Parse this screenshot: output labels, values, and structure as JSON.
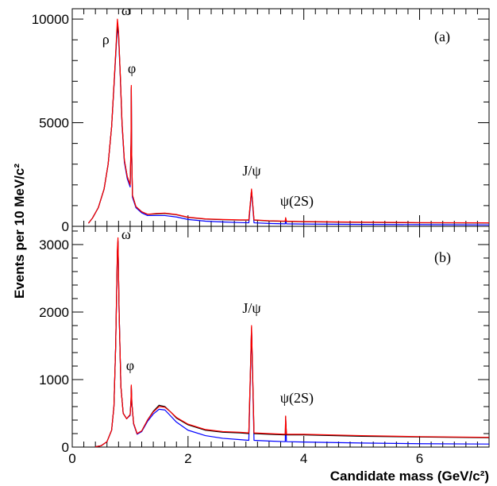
{
  "chart_data": [
    {
      "type": "line",
      "panel_label": "(a)",
      "ylabel": "Events per 10 MeV/c²",
      "xlabel": "",
      "xlim": [
        0,
        7.2
      ],
      "ylim": [
        0,
        10500
      ],
      "yticks": [
        0,
        5000,
        10000
      ],
      "ytick_labels": [
        "0",
        "5000",
        "10000"
      ],
      "grid": false,
      "x_unit_note": "GeV/c²",
      "series": [
        {
          "color": "#000000",
          "points": [
            [
              0.28,
              150
            ],
            [
              0.35,
              400
            ],
            [
              0.45,
              900
            ],
            [
              0.55,
              1800
            ],
            [
              0.62,
              3000
            ],
            [
              0.68,
              4800
            ],
            [
              0.72,
              6800
            ],
            [
              0.76,
              8800
            ],
            [
              0.78,
              9700
            ],
            [
              0.8,
              9300
            ],
            [
              0.83,
              7300
            ],
            [
              0.86,
              5000
            ],
            [
              0.9,
              3200
            ],
            [
              0.95,
              2400
            ],
            [
              1.0,
              2000
            ],
            [
              1.015,
              4000
            ],
            [
              1.02,
              6700
            ],
            [
              1.025,
              3800
            ],
            [
              1.04,
              1500
            ],
            [
              1.1,
              950
            ],
            [
              1.2,
              700
            ],
            [
              1.3,
              580
            ],
            [
              1.45,
              600
            ],
            [
              1.6,
              620
            ],
            [
              1.8,
              560
            ],
            [
              2.0,
              430
            ],
            [
              2.3,
              350
            ],
            [
              2.6,
              320
            ],
            [
              2.9,
              300
            ],
            [
              3.05,
              300
            ],
            [
              3.097,
              1750
            ],
            [
              3.14,
              300
            ],
            [
              3.4,
              260
            ],
            [
              3.68,
              240
            ],
            [
              3.686,
              400
            ],
            [
              3.7,
              240
            ],
            [
              4.0,
              220
            ],
            [
              5.0,
              190
            ],
            [
              6.0,
              170
            ],
            [
              7.2,
              160
            ]
          ]
        },
        {
          "color": "#ff0000",
          "points": [
            [
              0.28,
              150
            ],
            [
              0.35,
              400
            ],
            [
              0.45,
              900
            ],
            [
              0.55,
              1800
            ],
            [
              0.62,
              3000
            ],
            [
              0.68,
              4800
            ],
            [
              0.72,
              6800
            ],
            [
              0.76,
              8900
            ],
            [
              0.78,
              10000
            ],
            [
              0.8,
              9400
            ],
            [
              0.83,
              7300
            ],
            [
              0.86,
              5000
            ],
            [
              0.9,
              3200
            ],
            [
              0.95,
              2400
            ],
            [
              1.0,
              2000
            ],
            [
              1.015,
              4000
            ],
            [
              1.02,
              6800
            ],
            [
              1.025,
              3800
            ],
            [
              1.04,
              1500
            ],
            [
              1.1,
              950
            ],
            [
              1.2,
              700
            ],
            [
              1.3,
              580
            ],
            [
              1.45,
              620
            ],
            [
              1.6,
              640
            ],
            [
              1.8,
              570
            ],
            [
              2.0,
              440
            ],
            [
              2.3,
              360
            ],
            [
              2.6,
              330
            ],
            [
              2.9,
              310
            ],
            [
              3.05,
              310
            ],
            [
              3.097,
              1800
            ],
            [
              3.14,
              310
            ],
            [
              3.4,
              270
            ],
            [
              3.68,
              250
            ],
            [
              3.686,
              420
            ],
            [
              3.7,
              250
            ],
            [
              4.0,
              230
            ],
            [
              5.0,
              200
            ],
            [
              6.0,
              180
            ],
            [
              7.2,
              170
            ]
          ]
        },
        {
          "color": "#0000ff",
          "points": [
            [
              0.28,
              150
            ],
            [
              0.35,
              400
            ],
            [
              0.45,
              900
            ],
            [
              0.55,
              1800
            ],
            [
              0.62,
              3000
            ],
            [
              0.68,
              4800
            ],
            [
              0.72,
              6700
            ],
            [
              0.76,
              8700
            ],
            [
              0.78,
              9600
            ],
            [
              0.8,
              9200
            ],
            [
              0.83,
              7200
            ],
            [
              0.86,
              4900
            ],
            [
              0.9,
              3100
            ],
            [
              0.95,
              2300
            ],
            [
              1.0,
              1900
            ],
            [
              1.015,
              3900
            ],
            [
              1.02,
              6600
            ],
            [
              1.025,
              3700
            ],
            [
              1.04,
              1400
            ],
            [
              1.1,
              900
            ],
            [
              1.2,
              650
            ],
            [
              1.3,
              520
            ],
            [
              1.45,
              520
            ],
            [
              1.6,
              520
            ],
            [
              1.8,
              450
            ],
            [
              2.0,
              330
            ],
            [
              2.3,
              250
            ],
            [
              2.6,
              210
            ],
            [
              2.9,
              180
            ],
            [
              3.05,
              170
            ],
            [
              3.097,
              1700
            ],
            [
              3.14,
              170
            ],
            [
              3.4,
              140
            ],
            [
              3.68,
              120
            ],
            [
              3.686,
              280
            ],
            [
              3.7,
              120
            ],
            [
              4.0,
              110
            ],
            [
              5.0,
              90
            ],
            [
              6.0,
              80
            ],
            [
              7.2,
              70
            ]
          ]
        }
      ],
      "annotations": [
        {
          "text": "ρ",
          "x": 0.58,
          "y": 8800
        },
        {
          "text": "ω",
          "x": 0.93,
          "y": 10200
        },
        {
          "text": "φ",
          "x": 1.03,
          "y": 7400
        },
        {
          "text": "J/ψ",
          "x": 3.1,
          "y": 2450
        },
        {
          "text": "ψ(2S)",
          "x": 3.88,
          "y": 1000
        }
      ]
    },
    {
      "type": "line",
      "panel_label": "(b)",
      "ylabel": "",
      "xlabel": "Candidate mass (GeV/c²)",
      "xlim": [
        0,
        7.2
      ],
      "ylim": [
        0,
        3270
      ],
      "yticks": [
        0,
        1000,
        2000,
        3000
      ],
      "ytick_labels": [
        "0",
        "1000",
        "2000",
        "3000"
      ],
      "xticks": [
        0,
        2,
        4,
        6
      ],
      "xtick_labels": [
        "0",
        "2",
        "4",
        "6"
      ],
      "grid": false,
      "series": [
        {
          "color": "#000000",
          "points": [
            [
              0.4,
              5
            ],
            [
              0.5,
              20
            ],
            [
              0.6,
              80
            ],
            [
              0.68,
              250
            ],
            [
              0.72,
              600
            ],
            [
              0.75,
              1500
            ],
            [
              0.78,
              2900
            ],
            [
              0.79,
              3050
            ],
            [
              0.81,
              2000
            ],
            [
              0.84,
              900
            ],
            [
              0.88,
              500
            ],
            [
              0.94,
              420
            ],
            [
              1.0,
              480
            ],
            [
              1.015,
              700
            ],
            [
              1.02,
              900
            ],
            [
              1.03,
              650
            ],
            [
              1.06,
              350
            ],
            [
              1.12,
              200
            ],
            [
              1.2,
              240
            ],
            [
              1.3,
              400
            ],
            [
              1.4,
              530
            ],
            [
              1.5,
              620
            ],
            [
              1.6,
              600
            ],
            [
              1.7,
              520
            ],
            [
              1.8,
              430
            ],
            [
              2.0,
              330
            ],
            [
              2.3,
              250
            ],
            [
              2.6,
              220
            ],
            [
              2.9,
              210
            ],
            [
              3.05,
              200
            ],
            [
              3.097,
              1770
            ],
            [
              3.14,
              200
            ],
            [
              3.4,
              190
            ],
            [
              3.68,
              180
            ],
            [
              3.686,
              450
            ],
            [
              3.7,
              180
            ],
            [
              4.0,
              180
            ],
            [
              5.0,
              160
            ],
            [
              6.0,
              150
            ],
            [
              7.2,
              140
            ]
          ]
        },
        {
          "color": "#ff0000",
          "points": [
            [
              0.4,
              5
            ],
            [
              0.5,
              20
            ],
            [
              0.6,
              80
            ],
            [
              0.68,
              250
            ],
            [
              0.72,
              600
            ],
            [
              0.75,
              1500
            ],
            [
              0.78,
              2950
            ],
            [
              0.79,
              3100
            ],
            [
              0.81,
              2000
            ],
            [
              0.84,
              900
            ],
            [
              0.88,
              500
            ],
            [
              0.94,
              420
            ],
            [
              1.0,
              480
            ],
            [
              1.015,
              700
            ],
            [
              1.02,
              920
            ],
            [
              1.03,
              650
            ],
            [
              1.06,
              350
            ],
            [
              1.12,
              200
            ],
            [
              1.2,
              240
            ],
            [
              1.3,
              400
            ],
            [
              1.4,
              520
            ],
            [
              1.5,
              600
            ],
            [
              1.6,
              590
            ],
            [
              1.7,
              520
            ],
            [
              1.8,
              440
            ],
            [
              2.0,
              340
            ],
            [
              2.3,
              260
            ],
            [
              2.6,
              230
            ],
            [
              2.9,
              220
            ],
            [
              3.05,
              210
            ],
            [
              3.097,
              1800
            ],
            [
              3.14,
              210
            ],
            [
              3.4,
              200
            ],
            [
              3.68,
              190
            ],
            [
              3.686,
              460
            ],
            [
              3.7,
              190
            ],
            [
              4.0,
              190
            ],
            [
              5.0,
              170
            ],
            [
              6.0,
              155
            ],
            [
              7.2,
              145
            ]
          ]
        },
        {
          "color": "#0000ff",
          "points": [
            [
              0.4,
              5
            ],
            [
              0.5,
              20
            ],
            [
              0.6,
              80
            ],
            [
              0.68,
              250
            ],
            [
              0.72,
              600
            ],
            [
              0.75,
              1500
            ],
            [
              0.78,
              2900
            ],
            [
              0.79,
              3050
            ],
            [
              0.81,
              2000
            ],
            [
              0.84,
              900
            ],
            [
              0.88,
              500
            ],
            [
              0.94,
              420
            ],
            [
              1.0,
              470
            ],
            [
              1.015,
              690
            ],
            [
              1.02,
              880
            ],
            [
              1.03,
              640
            ],
            [
              1.06,
              340
            ],
            [
              1.12,
              190
            ],
            [
              1.2,
              230
            ],
            [
              1.3,
              380
            ],
            [
              1.4,
              490
            ],
            [
              1.5,
              560
            ],
            [
              1.6,
              550
            ],
            [
              1.7,
              460
            ],
            [
              1.8,
              370
            ],
            [
              2.0,
              250
            ],
            [
              2.3,
              170
            ],
            [
              2.6,
              130
            ],
            [
              2.9,
              110
            ],
            [
              3.05,
              100
            ],
            [
              3.097,
              1750
            ],
            [
              3.14,
              100
            ],
            [
              3.4,
              90
            ],
            [
              3.68,
              80
            ],
            [
              3.686,
              420
            ],
            [
              3.7,
              80
            ],
            [
              4.0,
              75
            ],
            [
              5.0,
              60
            ],
            [
              6.0,
              50
            ],
            [
              7.2,
              45
            ]
          ]
        }
      ],
      "annotations": [
        {
          "text": "ω",
          "x": 0.93,
          "y": 3080
        },
        {
          "text": "φ",
          "x": 1.0,
          "y": 1140
        },
        {
          "text": "J/ψ",
          "x": 3.1,
          "y": 1990
        },
        {
          "text": "ψ(2S)",
          "x": 3.88,
          "y": 660
        }
      ]
    }
  ]
}
